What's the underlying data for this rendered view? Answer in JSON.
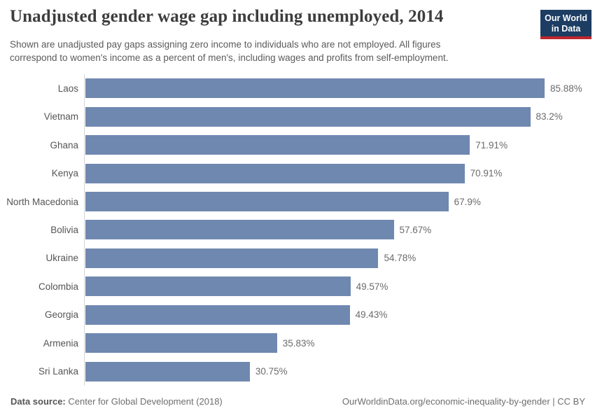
{
  "header": {
    "title": "Unadjusted gender wage gap including unemployed, 2014",
    "subtitle": "Shown are unadjusted pay gaps assigning zero income to individuals who are not employed. All figures correspond to women's income as a percent of men's, including wages and profits from self-employment.",
    "logo": {
      "line1": "Our World",
      "line2": "in Data",
      "bg_color": "#1d3d63",
      "accent_color": "#c0262e"
    }
  },
  "chart_data": {
    "type": "bar",
    "orientation": "horizontal",
    "title": "Unadjusted gender wage gap including unemployed, 2014",
    "categories": [
      "Laos",
      "Vietnam",
      "Ghana",
      "Kenya",
      "North Macedonia",
      "Bolivia",
      "Ukraine",
      "Colombia",
      "Georgia",
      "Armenia",
      "Sri Lanka"
    ],
    "values": [
      85.88,
      83.2,
      71.91,
      70.91,
      67.9,
      57.67,
      54.78,
      49.57,
      49.43,
      35.83,
      30.75
    ],
    "value_labels": [
      "85.88%",
      "83.2%",
      "71.91%",
      "70.91%",
      "67.9%",
      "57.67%",
      "54.78%",
      "49.57%",
      "49.43%",
      "35.83%",
      "30.75%"
    ],
    "unit": "%",
    "xlim": [
      0,
      85.88
    ],
    "grid": false,
    "legend": "none",
    "bar_color": "#6f88b0"
  },
  "footer": {
    "datasource_label": "Data source:",
    "datasource_value": "Center for Global Development (2018)",
    "attribution": "OurWorldinData.org/economic-inequality-by-gender | CC BY"
  }
}
